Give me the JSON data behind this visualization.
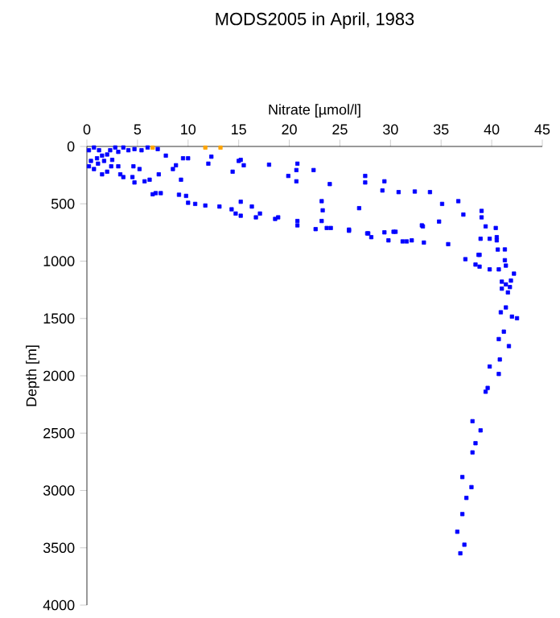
{
  "chart_data": {
    "type": "scatter",
    "title": "MODS2005 in April, 1983",
    "xlabel": "Nitrate [µmol/l]",
    "ylabel": "Depth [m]",
    "xlim": [
      0,
      45
    ],
    "xticks": [
      0,
      5,
      10,
      15,
      20,
      25,
      30,
      35,
      40,
      45
    ],
    "ylim": [
      4000,
      0
    ],
    "yticks": [
      0,
      500,
      1000,
      1500,
      2000,
      2500,
      3000,
      3500,
      4000
    ],
    "grid": false,
    "marker": "square",
    "series": [
      {
        "color": "#0000ff",
        "x": [
          7.8,
          7.1,
          8.5,
          9.3,
          9.5,
          10,
          8.8,
          12,
          12.3,
          14.4,
          15,
          15.5,
          15.2,
          18,
          19.9,
          20.7,
          20.8,
          20.7,
          22.4,
          24,
          27.5,
          27.5,
          29.4,
          29.2,
          30.8,
          32.4,
          33.9,
          35.1,
          36.7,
          37.2,
          39,
          39,
          39.4,
          40.4,
          40.5,
          40.5,
          39.8,
          41.3,
          38.9,
          38.7,
          35.7,
          34.8,
          33.3,
          33.1,
          32.1,
          31.6,
          31.2,
          30.5,
          29.8,
          29.4,
          28.1,
          27.8,
          26.9,
          25.9,
          24.1,
          23.7,
          23.2,
          23.3,
          23.2,
          22.6,
          20.8,
          20.8,
          18.9,
          18.6,
          17.1,
          16.7,
          16.3,
          15.2,
          15.2,
          14.7,
          14.3,
          13.1,
          11.7,
          10.7,
          10,
          9.8,
          9.1,
          7.3,
          6.8,
          6.5,
          5.7,
          4.7,
          4.5,
          3.6,
          3.3,
          2,
          1.5,
          2.4,
          3.1,
          4.6,
          5.2,
          6.2,
          5.4,
          4.1,
          3.1,
          2,
          1,
          0.4,
          0.2,
          0.7,
          1.2,
          1.5,
          1.7,
          2.3,
          2.8,
          3.6,
          4.7,
          6,
          0.2,
          0.7,
          2.5,
          1.1,
          7,
          25.9,
          27.7,
          30.3,
          33.2,
          37.4,
          38.4,
          38.8,
          38.8,
          39.8,
          40.7,
          40.6,
          41.3,
          41.4,
          42.2,
          41.9,
          41,
          41.4,
          41,
          41.6,
          41.8,
          41.4,
          40.9,
          42,
          42.5,
          41.2,
          40.7,
          41.7,
          40.8,
          39.8,
          40.7,
          39.6,
          39.4,
          38.1,
          38.9,
          38.4,
          38.1,
          37.1,
          38,
          37.5,
          37.1,
          36.6,
          37.3,
          36.9
        ],
        "values": [
          80,
          243,
          197,
          290,
          103,
          103,
          164,
          150,
          89,
          220,
          126,
          164,
          117,
          159,
          257,
          206,
          150,
          304,
          206,
          328,
          257,
          314,
          304,
          384,
          398,
          393,
          398,
          501,
          477,
          594,
          562,
          618,
          697,
          711,
          791,
          819,
          805,
          898,
          805,
          945,
          852,
          655,
          838,
          688,
          819,
          828,
          828,
          744,
          819,
          749,
          791,
          758,
          538,
          725,
          711,
          711,
          650,
          557,
          477,
          721,
          688,
          650,
          618,
          632,
          585,
          618,
          524,
          482,
          604,
          585,
          548,
          524,
          515,
          501,
          491,
          431,
          421,
          407,
          407,
          417,
          304,
          314,
          267,
          267,
          243,
          220,
          243,
          173,
          173,
          173,
          197,
          290,
          33,
          33,
          47,
          70,
          103,
          126,
          33,
          9,
          33,
          80,
          126,
          33,
          9,
          9,
          23,
          9,
          173,
          197,
          117,
          150,
          23,
          735,
          758,
          744,
          697,
          983,
          1030,
          1048,
          945,
          1072,
          1072,
          899,
          992,
          1039,
          1109,
          1170,
          1179,
          1203,
          1240,
          1273,
          1226,
          1404,
          1446,
          1484,
          1498,
          1615,
          1680,
          1741,
          1858,
          1919,
          1984,
          2106,
          2139,
          2396,
          2476,
          2588,
          2668,
          2883,
          2971,
          3065,
          3206,
          3360,
          3473,
          3548
        ]
      },
      {
        "color": "#ffa500",
        "x": [
          6.5,
          11.7,
          13.2
        ],
        "values": [
          10,
          10,
          10
        ]
      }
    ]
  }
}
